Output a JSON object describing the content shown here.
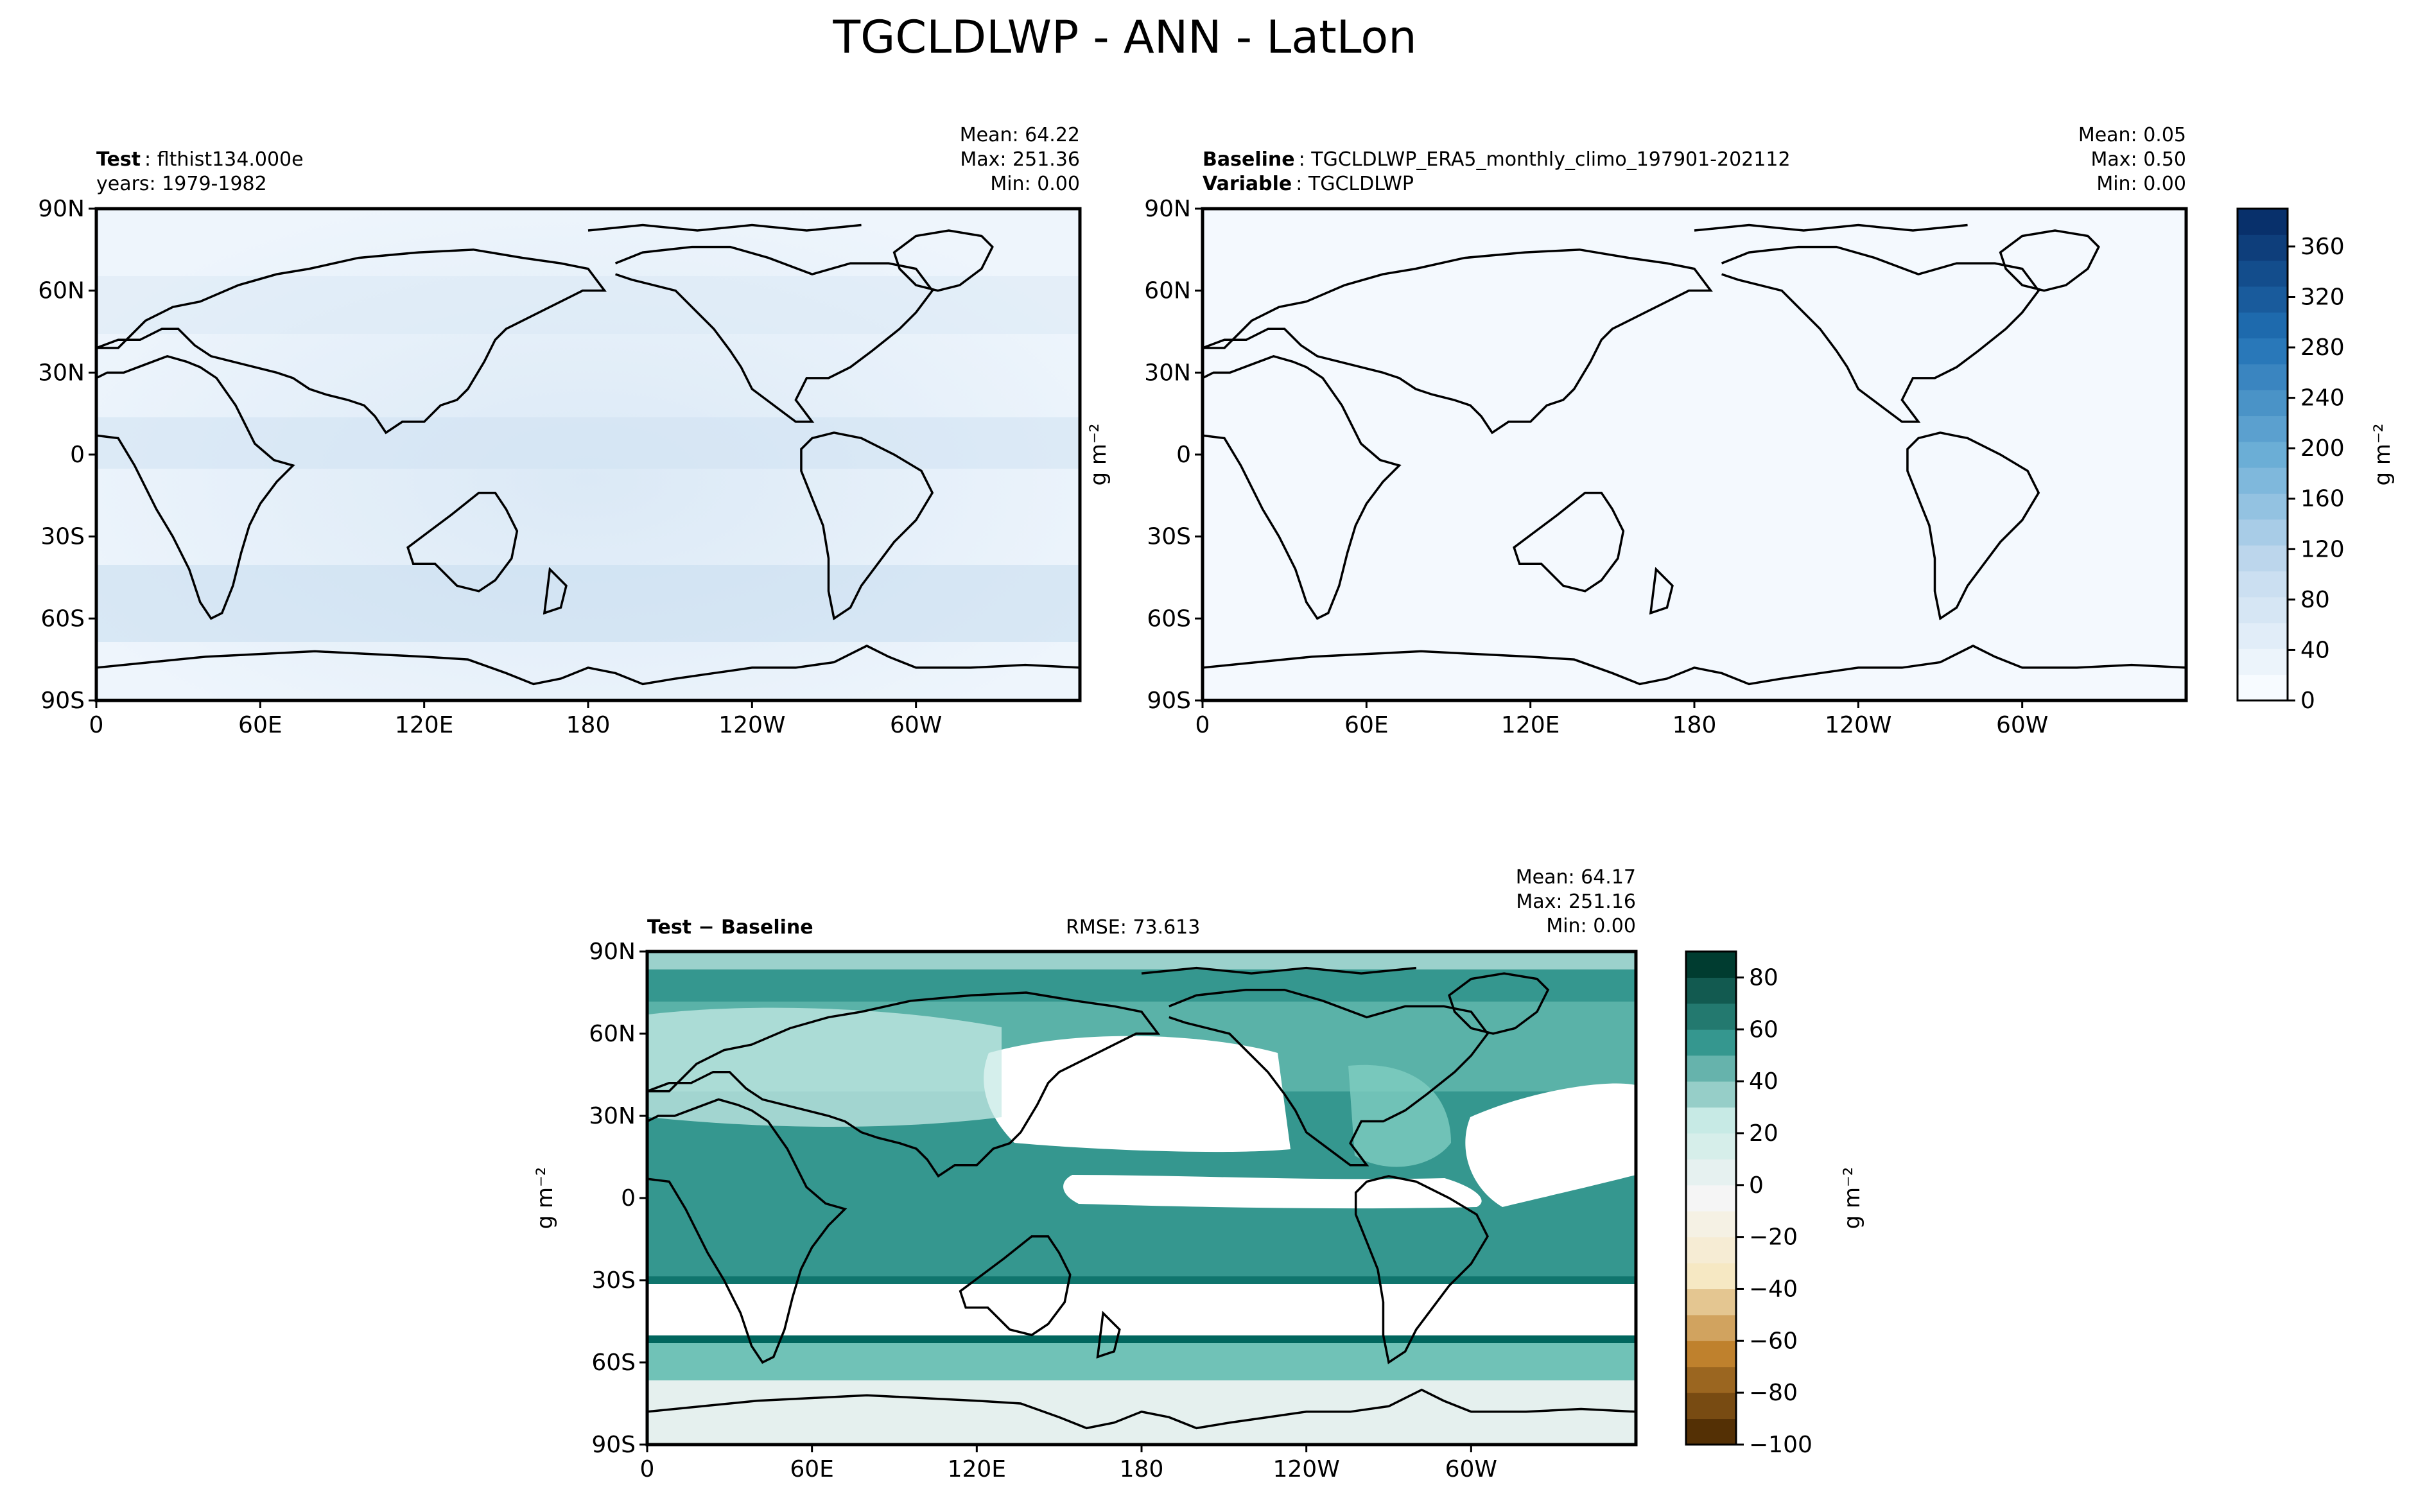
{
  "figure": {
    "title": "TGCLDLWP - ANN - LatLon"
  },
  "chart_data": [
    {
      "type": "heatmap",
      "panel": "test",
      "label_bold": "Test",
      "label_value": "flthist134.000e",
      "label_line2": "years: 1979-1982",
      "stats": {
        "mean": "Mean: 64.22",
        "max": "Max: 251.36",
        "min": "Min:  0.00"
      },
      "xticks": [
        "0",
        "60E",
        "120E",
        "180",
        "120W",
        "60W"
      ],
      "yticks": [
        "90N",
        "60N",
        "30N",
        "0",
        "30S",
        "60S",
        "90S"
      ],
      "xlim": [
        0,
        360
      ],
      "ylim": [
        -90,
        90
      ]
    },
    {
      "type": "heatmap",
      "panel": "baseline",
      "label_bold": "Baseline",
      "label_value": "TGCLDLWP_ERA5_monthly_climo_197901-202112",
      "label2_bold": "Variable",
      "label2_value": "TGCLDLWP",
      "stats": {
        "mean": "Mean:  0.05",
        "max": "Max:  0.50",
        "min": "Min:  0.00"
      },
      "xticks": [
        "0",
        "60E",
        "120E",
        "180",
        "120W",
        "60W"
      ],
      "yticks": [
        "90N",
        "60N",
        "30N",
        "0",
        "30S",
        "60S",
        "90S"
      ],
      "ylabel": "g m⁻²",
      "colorbar": {
        "label": "g m⁻²",
        "cmap": "Blues",
        "min": 0,
        "max": 390,
        "ticks": [
          "0",
          "40",
          "80",
          "120",
          "160",
          "200",
          "240",
          "280",
          "320",
          "360"
        ],
        "tick_values": [
          0,
          40,
          80,
          120,
          160,
          200,
          240,
          280,
          320,
          360
        ]
      }
    },
    {
      "type": "heatmap",
      "panel": "difference",
      "label_bold": "Test − Baseline",
      "rmse": "RMSE: 73.613",
      "stats": {
        "mean": "Mean: 64.17",
        "max": "Max: 251.16",
        "min": "Min:  0.00"
      },
      "xticks": [
        "0",
        "60E",
        "120E",
        "180",
        "120W",
        "60W"
      ],
      "yticks": [
        "90N",
        "60N",
        "30N",
        "0",
        "30S",
        "60S",
        "90S"
      ],
      "ylabel": "g m⁻²",
      "colorbar": {
        "label": "g m⁻²",
        "cmap": "BrBG",
        "min": -100,
        "max": 90,
        "ticks": [
          "−100",
          "−80",
          "−60",
          "−40",
          "−20",
          "0",
          "20",
          "40",
          "60",
          "80"
        ],
        "tick_values": [
          -100,
          -80,
          -60,
          -40,
          -20,
          0,
          20,
          40,
          60,
          80
        ]
      }
    }
  ]
}
